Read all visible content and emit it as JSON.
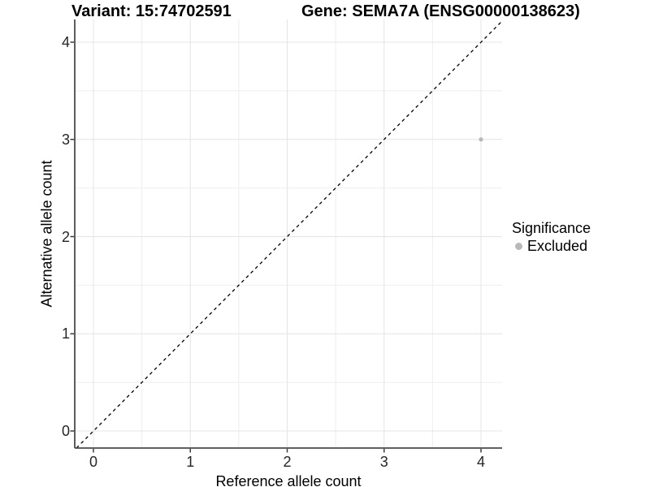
{
  "titles": {
    "variant": "Variant: 15:74702591",
    "gene": "Gene: SEMA7A (ENSG00000138623)"
  },
  "chart_data": {
    "type": "scatter",
    "titles": {
      "variant": "Variant: 15:74702591",
      "gene": "Gene: SEMA7A (ENSG00000138623)"
    },
    "xlabel": "Reference allele count",
    "ylabel": "Alternative allele count",
    "xlim": [
      -0.2,
      4.2
    ],
    "ylim": [
      -0.2,
      4.2
    ],
    "x_ticks": [
      0,
      1,
      2,
      3,
      4
    ],
    "y_ticks": [
      0,
      1,
      2,
      3,
      4
    ],
    "grid": {
      "major": true,
      "minor": true
    },
    "identity_line": {
      "style": "dashed",
      "color": "#000000",
      "slope": 1,
      "intercept": 0
    },
    "legend": {
      "position": "right",
      "title": "Significance",
      "items": [
        {
          "label": "Excluded",
          "color": "#b9b9b9"
        }
      ]
    },
    "series": [
      {
        "name": "Excluded",
        "color": "#b9b9b9",
        "points": [
          {
            "x": 4,
            "y": 3
          }
        ]
      }
    ]
  },
  "colors": {
    "background": "#ffffff",
    "grid_major": "#e4e4e4",
    "grid_minor": "#eeeeee",
    "axis_line": "#4a4a4a",
    "tick_mark": "#3a3a3a",
    "tick_label": "#262626",
    "identity_line": "#000000",
    "point": "#b9b9b9"
  }
}
